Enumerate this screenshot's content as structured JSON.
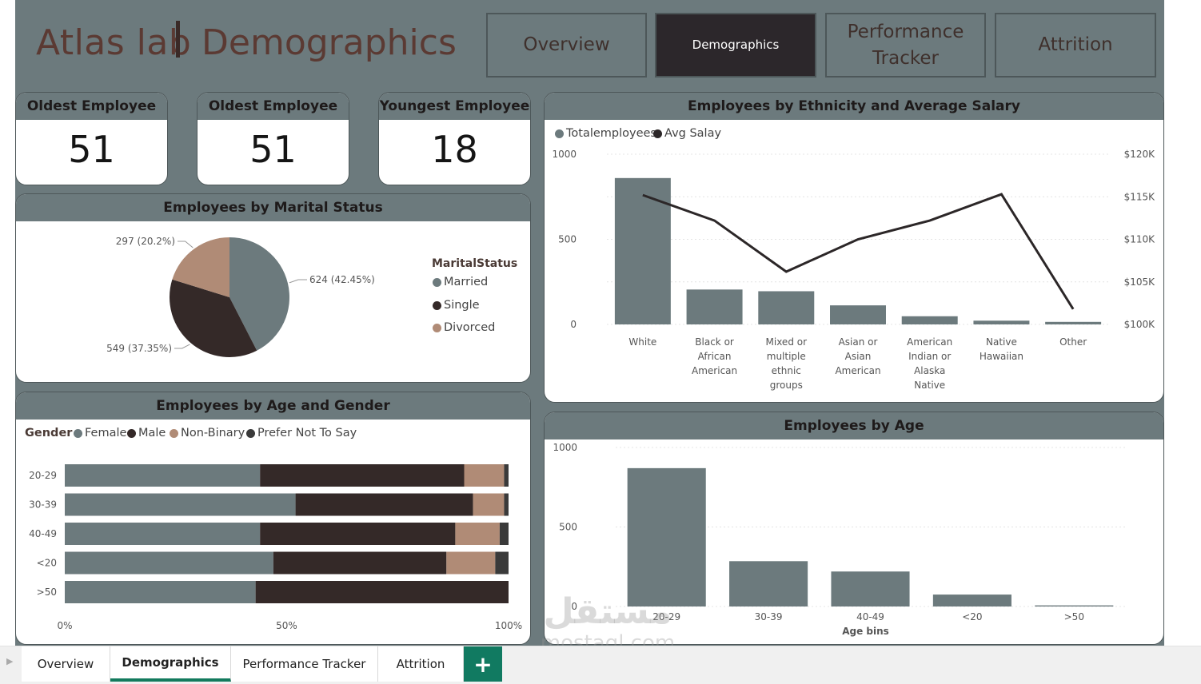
{
  "header": {
    "app_title": "Atlas lab",
    "page_title": "Demographics",
    "nav": [
      {
        "label": "Overview",
        "active": false
      },
      {
        "label": "Demographics",
        "active": true
      },
      {
        "label": "Performance Tracker",
        "active": false
      },
      {
        "label": "Attrition",
        "active": false
      }
    ]
  },
  "kpis": [
    {
      "title": "Oldest Employee",
      "value": "51"
    },
    {
      "title": "Oldest Employee",
      "value": "51"
    },
    {
      "title": "Youngest Employee",
      "value": "18"
    }
  ],
  "colors": {
    "slate": "#6c7a7d",
    "dark": "#342928",
    "tan": "#b08b76",
    "charcoal": "#3a3a3a",
    "accent_green": "#117a61"
  },
  "tabs": {
    "items": [
      "Overview",
      "Demographics",
      "Performance Tracker",
      "Attrition"
    ],
    "active": "Demographics",
    "add_label": "+"
  },
  "watermark": {
    "arabic": "مستقل",
    "latin": "mostaql.com"
  },
  "chart_data": [
    {
      "id": "marital",
      "type": "pie",
      "title": "Employees by Marital Status",
      "legend_title": "MaritalStatus",
      "legend_position": "right",
      "slices": [
        {
          "name": "Married",
          "value": 624,
          "label": "624 (42.45%)",
          "color": "#6c7a7d"
        },
        {
          "name": "Single",
          "value": 549,
          "label": "549 (37.35%)",
          "color": "#342928"
        },
        {
          "name": "Divorced",
          "value": 297,
          "label": "297 (20.2%)",
          "color": "#b08b76"
        }
      ]
    },
    {
      "id": "age_gender",
      "type": "bar",
      "orientation": "horizontal",
      "stacked": "100%",
      "title": "Employees by Age and Gender",
      "legend_title": "Gender",
      "legend_position": "top-left",
      "categories": [
        "20-29",
        "30-39",
        "40-49",
        "<20",
        ">50"
      ],
      "series": [
        {
          "name": "Female",
          "color": "#6c7a7d",
          "values": [
            44,
            52,
            44,
            47,
            43
          ]
        },
        {
          "name": "Male",
          "color": "#342928",
          "values": [
            46,
            40,
            44,
            39,
            57
          ]
        },
        {
          "name": "Non-Binary",
          "color": "#b08b76",
          "values": [
            9,
            7,
            10,
            11,
            0
          ]
        },
        {
          "name": "Prefer Not To Say",
          "color": "#3a3a3a",
          "values": [
            1,
            1,
            2,
            3,
            0
          ]
        }
      ],
      "xticks": [
        "0%",
        "50%",
        "100%"
      ]
    },
    {
      "id": "ethnicity",
      "type": "bar",
      "combo": "bar+line",
      "title": "Employees by Ethnicity and Average Salary",
      "legend_position": "top-left",
      "categories": [
        "White",
        "Black or African American",
        "Mixed or multiple ethnic groups",
        "Asian or Asian American",
        "American Indian or Alaska Native",
        "Native Hawaiian",
        "Other"
      ],
      "series": [
        {
          "name": "Totalemployees",
          "axis": "left",
          "color": "#6c7a7d",
          "values": [
            860,
            205,
            195,
            112,
            48,
            22,
            15
          ]
        },
        {
          "name": "Avg Salay",
          "axis": "right",
          "color": "#2c2728",
          "values": [
            115200,
            112200,
            106200,
            110000,
            112200,
            115300,
            101800
          ]
        }
      ],
      "ylim": [
        0,
        1000
      ],
      "yticks": [
        "0",
        "500",
        "1000"
      ],
      "y2lim": [
        100000,
        120000
      ],
      "y2ticks": [
        "$100K",
        "$105K",
        "$110K",
        "$115K",
        "$120K"
      ],
      "grid": true
    },
    {
      "id": "age",
      "type": "bar",
      "title": "Employees by Age",
      "xlabel": "Age bins",
      "categories": [
        "20-29",
        "30-39",
        "40-49",
        "<20",
        ">50"
      ],
      "values": [
        870,
        285,
        220,
        75,
        7
      ],
      "ylim": [
        0,
        1000
      ],
      "yticks": [
        "0",
        "500",
        "1000"
      ],
      "grid": true
    }
  ]
}
